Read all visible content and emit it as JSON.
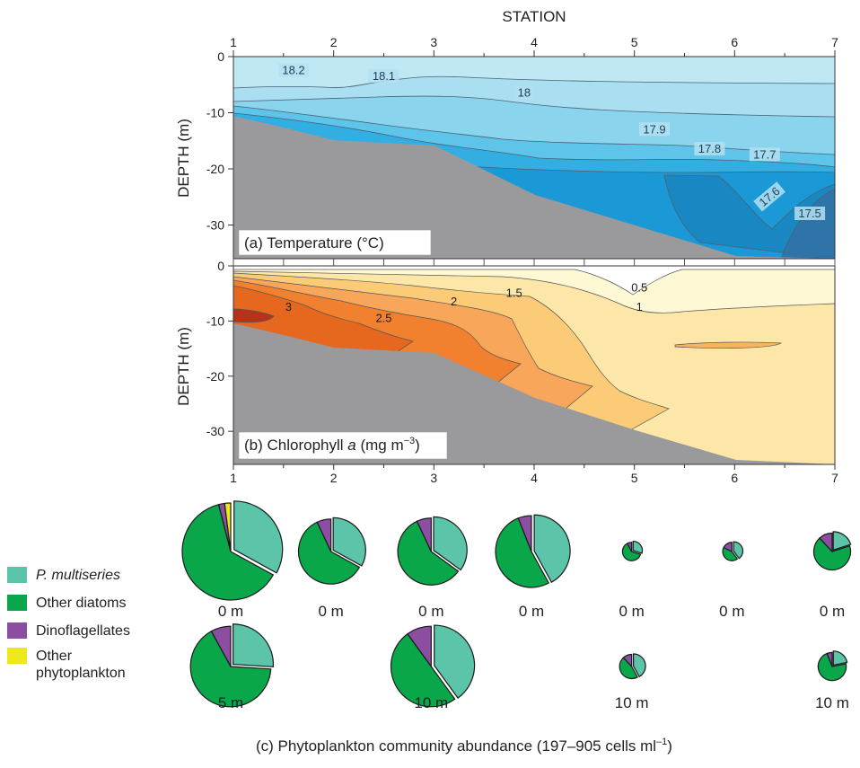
{
  "chart_data": [
    {
      "type": "heatmap",
      "panel": "(a)",
      "title": "(a) Temperature (°C)",
      "xlabel": "STATION",
      "ylabel": "DEPTH (m)",
      "x_ticks": [
        "1",
        "2",
        "3",
        "4",
        "5",
        "6",
        "7"
      ],
      "y_ticks": [
        "0",
        "-10",
        "-20",
        "-30"
      ],
      "xlim": [
        1,
        7
      ],
      "ylim": [
        -36,
        0
      ],
      "contour_labels": [
        {
          "text": "18.2",
          "station": 1.6,
          "depth": -2.5
        },
        {
          "text": "18.1",
          "station": 2.5,
          "depth": -3.5
        },
        {
          "text": "18",
          "station": 3.9,
          "depth": -6.5
        },
        {
          "text": "17.9",
          "station": 5.2,
          "depth": -13
        },
        {
          "text": "17.8",
          "station": 5.75,
          "depth": -16.5
        },
        {
          "text": "17.7",
          "station": 6.3,
          "depth": -17.5
        },
        {
          "text": "17.6",
          "station": 6.35,
          "depth": -25
        },
        {
          "text": "17.5",
          "station": 6.75,
          "depth": -28
        }
      ],
      "levels": [
        18.2,
        18.1,
        18,
        17.9,
        17.8,
        17.7,
        17.6,
        17.5
      ],
      "bottom_depth": [
        [
          1,
          -10
        ],
        [
          1.5,
          -12
        ],
        [
          2,
          -14
        ],
        [
          3,
          -15
        ],
        [
          4,
          -21
        ],
        [
          5,
          -26
        ],
        [
          6,
          -31
        ],
        [
          7,
          -36
        ]
      ]
    },
    {
      "type": "heatmap",
      "panel": "(b)",
      "title": "(b) Chlorophyll a (mg m−3)",
      "xlabel": "",
      "ylabel": "DEPTH (m)",
      "x_ticks": [
        "1",
        "2",
        "3",
        "4",
        "5",
        "6",
        "7"
      ],
      "y_ticks": [
        "0",
        "-10",
        "-20",
        "-30"
      ],
      "xlim": [
        1,
        7
      ],
      "ylim": [
        -36,
        0
      ],
      "contour_labels": [
        {
          "text": "0.5",
          "station": 5.05,
          "depth": -4
        },
        {
          "text": "1",
          "station": 5.05,
          "depth": -7.5
        },
        {
          "text": "1.5",
          "station": 3.8,
          "depth": -5
        },
        {
          "text": "2",
          "station": 3.2,
          "depth": -6.5
        },
        {
          "text": "2.5",
          "station": 2.5,
          "depth": -9.5
        },
        {
          "text": "3",
          "station": 1.55,
          "depth": -7.5
        }
      ],
      "levels": [
        0.5,
        1,
        1.5,
        2,
        2.5,
        3
      ],
      "bottom_depth": [
        [
          1,
          -10
        ],
        [
          1.5,
          -12
        ],
        [
          2,
          -14
        ],
        [
          3,
          -15
        ],
        [
          4,
          -21
        ],
        [
          5,
          -26
        ],
        [
          6,
          -31
        ],
        [
          7,
          -36
        ]
      ]
    },
    {
      "type": "pie",
      "panel": "(c)",
      "title": "(c) Phytoplankton community abundance (197–905 cells ml–1)",
      "legend": [
        "P. multiseries",
        "Other diatoms",
        "Dinoflagellates",
        "Other phytoplankton"
      ],
      "legend_italic": [
        true,
        false,
        false,
        false
      ],
      "colors": [
        "#5cc4a8",
        "#0aa64a",
        "#8b4ea0",
        "#ece81a"
      ],
      "pies": [
        {
          "station": 1,
          "depth_label": "0 m",
          "size": 1.0,
          "fractions": [
            0.33,
            0.63,
            0.02,
            0.02
          ]
        },
        {
          "station": 2,
          "depth_label": "0 m",
          "size": 0.67,
          "fractions": [
            0.33,
            0.6,
            0.07,
            0.0
          ]
        },
        {
          "station": 3,
          "depth_label": "0 m",
          "size": 0.69,
          "fractions": [
            0.35,
            0.58,
            0.07,
            0.0
          ]
        },
        {
          "station": 4,
          "depth_label": "0 m",
          "size": 0.74,
          "fractions": [
            0.42,
            0.52,
            0.06,
            0.0
          ]
        },
        {
          "station": 5,
          "depth_label": "0 m",
          "size": 0.19,
          "fractions": [
            0.3,
            0.62,
            0.08,
            0.0
          ]
        },
        {
          "station": 6,
          "depth_label": "0 m",
          "size": 0.19,
          "fractions": [
            0.4,
            0.42,
            0.18,
            0.0
          ]
        },
        {
          "station": 7,
          "depth_label": "0 m",
          "size": 0.38,
          "fractions": [
            0.2,
            0.68,
            0.12,
            0.0
          ]
        },
        {
          "station": 1,
          "depth_label": "5 m",
          "size": 0.83,
          "fractions": [
            0.26,
            0.66,
            0.08,
            0.0
          ]
        },
        {
          "station": 3,
          "depth_label": "10 m",
          "size": 0.83,
          "fractions": [
            0.4,
            0.5,
            0.1,
            0.0
          ]
        },
        {
          "station": 5,
          "depth_label": "10 m",
          "size": 0.25,
          "fractions": [
            0.42,
            0.46,
            0.12,
            0.0
          ]
        },
        {
          "station": 7,
          "depth_label": "10 m",
          "size": 0.29,
          "fractions": [
            0.22,
            0.72,
            0.06,
            0.0
          ]
        }
      ]
    }
  ]
}
